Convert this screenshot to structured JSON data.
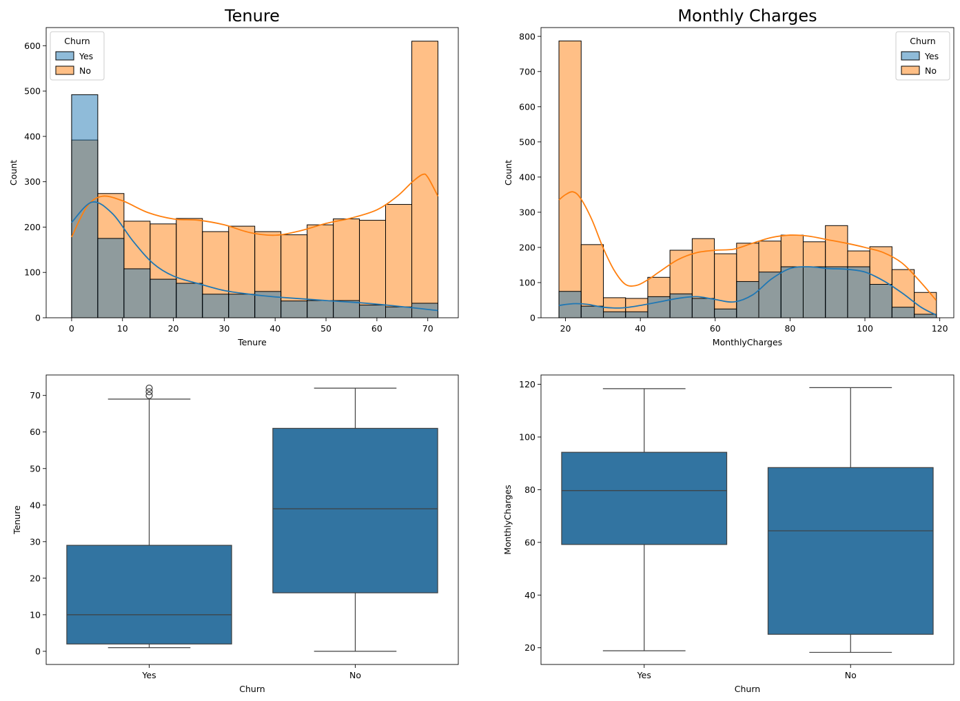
{
  "chart_data": [
    {
      "type": "histogram",
      "title": "Tenure",
      "xlabel": "Tenure",
      "ylabel": "Count",
      "xlim": [
        -5,
        76
      ],
      "ylim": [
        0,
        640
      ],
      "xticks": [
        0,
        10,
        20,
        30,
        40,
        50,
        60,
        70
      ],
      "yticks": [
        0,
        100,
        200,
        300,
        400,
        500,
        600
      ],
      "bin_edges": [
        0,
        5.14,
        10.29,
        15.43,
        20.57,
        25.71,
        30.86,
        36,
        41.14,
        46.29,
        51.43,
        56.57,
        61.71,
        66.86,
        72
      ],
      "legend": {
        "title": "Churn",
        "position": "top-left",
        "entries": [
          "Yes",
          "No"
        ]
      },
      "colors": {
        "Yes": "#1f77b4",
        "No": "#ff7f0e"
      },
      "series": [
        {
          "name": "Yes",
          "counts": [
            492,
            175,
            108,
            85,
            76,
            52,
            52,
            58,
            37,
            38,
            38,
            28,
            24,
            32
          ],
          "kde": {
            "x": [
              0,
              4,
              8,
              12,
              16,
              20,
              25,
              30,
              35,
              40,
              50,
              60,
              72
            ],
            "y": [
              210,
              255,
              230,
              170,
              120,
              92,
              75,
              60,
              52,
              46,
              38,
              30,
              16
            ]
          }
        },
        {
          "name": "No",
          "counts": [
            392,
            274,
            213,
            207,
            219,
            190,
            202,
            190,
            183,
            205,
            218,
            215,
            250,
            610
          ],
          "kde": {
            "x": [
              0,
              3,
              6,
              10,
              15,
              20,
              25,
              30,
              35,
              40,
              45,
              50,
              55,
              60,
              64,
              67,
              69,
              70,
              72
            ],
            "y": [
              178,
              245,
              268,
              258,
              232,
              218,
              215,
              205,
              188,
              182,
              192,
              208,
              220,
              238,
              268,
              300,
              316,
              310,
              268
            ]
          }
        }
      ]
    },
    {
      "type": "histogram",
      "title": "Monthly Charges",
      "xlabel": "MonthlyCharges",
      "ylabel": "Count",
      "xlim": [
        13.45,
        123.75
      ],
      "ylim": [
        0,
        825
      ],
      "xticks": [
        20,
        40,
        60,
        80,
        100,
        120
      ],
      "yticks": [
        0,
        100,
        200,
        300,
        400,
        500,
        600,
        700,
        800
      ],
      "bin_edges": [
        18.25,
        24.18,
        30.12,
        36.05,
        41.98,
        47.91,
        53.85,
        59.78,
        65.71,
        71.64,
        77.58,
        83.51,
        89.44,
        95.38,
        101.31,
        107.24,
        113.18,
        119.11
      ],
      "legend": {
        "title": "Churn",
        "position": "top-right",
        "entries": [
          "Yes",
          "No"
        ]
      },
      "colors": {
        "Yes": "#1f77b4",
        "No": "#ff7f0e"
      },
      "series": [
        {
          "name": "Yes",
          "counts": [
            75,
            33,
            17,
            17,
            60,
            68,
            55,
            25,
            103,
            130,
            145,
            145,
            145,
            145,
            95,
            30,
            10
          ],
          "kde": {
            "x": [
              18.25,
              22,
              26,
              30,
              35,
              40,
              45,
              50,
              55,
              60,
              65,
              70,
              75,
              80,
              85,
              90,
              95,
              100,
              105,
              110,
              115,
              119
            ],
            "y": [
              35,
              40,
              38,
              30,
              28,
              35,
              45,
              55,
              60,
              52,
              45,
              65,
              110,
              140,
              145,
              140,
              138,
              130,
              105,
              70,
              30,
              8
            ]
          }
        },
        {
          "name": "No",
          "counts": [
            787,
            208,
            57,
            55,
            115,
            192,
            225,
            182,
            212,
            218,
            235,
            216,
            262,
            190,
            202,
            137,
            72
          ],
          "kde": {
            "x": [
              18.25,
              20,
              22,
              24,
              27,
              30,
              33,
              36,
              39,
              42,
              45,
              50,
              55,
              60,
              65,
              70,
              75,
              80,
              85,
              90,
              95,
              100,
              105,
              110,
              115,
              119
            ],
            "y": [
              335,
              350,
              358,
              340,
              280,
              200,
              135,
              95,
              92,
              108,
              130,
              165,
              185,
              192,
              195,
              212,
              228,
              235,
              232,
              222,
              212,
              200,
              185,
              155,
              100,
              50
            ]
          }
        }
      ]
    },
    {
      "type": "box",
      "xlabel": "Churn",
      "ylabel": "Tenure",
      "ylim": [
        -3.6,
        75.6
      ],
      "yticks": [
        0,
        10,
        20,
        30,
        40,
        50,
        60,
        70
      ],
      "categories": [
        "Yes",
        "No"
      ],
      "color": "#3274a1",
      "boxes": [
        {
          "name": "Yes",
          "whislo": 1,
          "q1": 2,
          "med": 10,
          "q3": 29,
          "whishi": 69,
          "fliers": [
            70,
            71,
            72
          ]
        },
        {
          "name": "No",
          "whislo": 0,
          "q1": 16,
          "med": 39,
          "q3": 61,
          "whishi": 72,
          "fliers": []
        }
      ]
    },
    {
      "type": "box",
      "xlabel": "Churn",
      "ylabel": "MonthlyCharges",
      "ylim": [
        13.65,
        123.55
      ],
      "yticks": [
        20,
        40,
        60,
        80,
        100,
        120
      ],
      "categories": [
        "Yes",
        "No"
      ],
      "color": "#3274a1",
      "boxes": [
        {
          "name": "Yes",
          "whislo": 18.85,
          "q1": 59.2,
          "med": 79.65,
          "q3": 94.2,
          "whishi": 118.35,
          "fliers": []
        },
        {
          "name": "No",
          "whislo": 18.25,
          "q1": 25.1,
          "med": 64.4,
          "q3": 88.4,
          "whishi": 118.75,
          "fliers": []
        }
      ]
    }
  ]
}
